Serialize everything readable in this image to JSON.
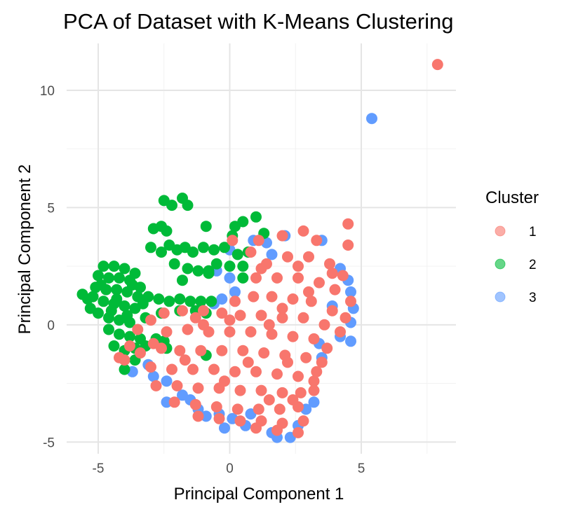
{
  "chart_data": {
    "type": "scatter",
    "title": "PCA of Dataset with K-Means Clustering",
    "xlabel": "Principal Component 1",
    "ylabel": "Principal Component 2",
    "xlim": [
      -6.2,
      8.6
    ],
    "ylim": [
      -5.5,
      12.0
    ],
    "x_ticks": [
      -5,
      0,
      5
    ],
    "y_ticks": [
      -5,
      0,
      5,
      10
    ],
    "x_tick_labels": [
      "-5",
      "0",
      "5"
    ],
    "y_tick_labels": [
      "-5",
      "0",
      "5",
      "10"
    ],
    "grid": true,
    "legend": {
      "title": "Cluster",
      "position": "right",
      "entries": [
        "1",
        "2",
        "3"
      ]
    },
    "series": [
      {
        "name": "1",
        "color": "#F8766D",
        "points": [
          [
            7.9,
            11.1
          ],
          [
            4.5,
            3.4
          ],
          [
            4.5,
            4.3
          ],
          [
            2.8,
            4.0
          ],
          [
            3.3,
            3.6
          ],
          [
            2.0,
            3.8
          ],
          [
            1.1,
            3.6
          ],
          [
            0.1,
            3.6
          ],
          [
            0.8,
            3.1
          ],
          [
            1.4,
            2.6
          ],
          [
            2.2,
            2.9
          ],
          [
            3.0,
            2.9
          ],
          [
            3.8,
            2.6
          ],
          [
            4.3,
            2.1
          ],
          [
            1.0,
            2.0
          ],
          [
            1.8,
            2.0
          ],
          [
            2.6,
            2.0
          ],
          [
            3.4,
            1.8
          ],
          [
            4.0,
            1.5
          ],
          [
            4.6,
            1.0
          ],
          [
            0.9,
            1.2
          ],
          [
            1.6,
            1.2
          ],
          [
            2.4,
            1.1
          ],
          [
            3.1,
            1.0
          ],
          [
            3.9,
            0.6
          ],
          [
            4.4,
            0.3
          ],
          [
            -2.5,
            0.5
          ],
          [
            -1.8,
            0.6
          ],
          [
            -1.0,
            0.6
          ],
          [
            -0.3,
            0.5
          ],
          [
            0.4,
            0.4
          ],
          [
            1.2,
            0.4
          ],
          [
            2.0,
            0.3
          ],
          [
            2.8,
            0.3
          ],
          [
            3.6,
            0.0
          ],
          [
            4.2,
            -0.3
          ],
          [
            -3.5,
            -0.2
          ],
          [
            -3.0,
            0.2
          ],
          [
            -2.4,
            -0.3
          ],
          [
            -1.6,
            -0.2
          ],
          [
            -0.8,
            -0.3
          ],
          [
            0.0,
            -0.3
          ],
          [
            0.8,
            -0.3
          ],
          [
            1.6,
            -0.4
          ],
          [
            2.4,
            -0.5
          ],
          [
            3.2,
            -0.6
          ],
          [
            3.7,
            -1.0
          ],
          [
            -3.4,
            -1.2
          ],
          [
            -2.6,
            -1.0
          ],
          [
            -1.9,
            -1.1
          ],
          [
            -1.1,
            -1.1
          ],
          [
            -0.3,
            -1.1
          ],
          [
            0.5,
            -1.1
          ],
          [
            1.3,
            -1.2
          ],
          [
            2.1,
            -1.3
          ],
          [
            2.9,
            -1.4
          ],
          [
            3.5,
            -1.6
          ],
          [
            -4.0,
            -1.5
          ],
          [
            -3.0,
            -1.8
          ],
          [
            -2.2,
            -1.9
          ],
          [
            -1.4,
            -1.9
          ],
          [
            -0.6,
            -1.9
          ],
          [
            0.2,
            -2.0
          ],
          [
            1.0,
            -2.0
          ],
          [
            1.8,
            -2.1
          ],
          [
            2.6,
            -2.2
          ],
          [
            3.2,
            -2.4
          ],
          [
            -2.8,
            -2.6
          ],
          [
            -2.0,
            -2.6
          ],
          [
            -1.2,
            -2.7
          ],
          [
            -0.4,
            -2.7
          ],
          [
            0.4,
            -2.8
          ],
          [
            1.2,
            -2.8
          ],
          [
            2.0,
            -2.9
          ],
          [
            2.7,
            -2.9
          ],
          [
            3.2,
            -2.8
          ],
          [
            -2.1,
            -3.3
          ],
          [
            -1.3,
            -3.4
          ],
          [
            -0.5,
            -3.5
          ],
          [
            0.3,
            -3.6
          ],
          [
            1.1,
            -3.6
          ],
          [
            1.9,
            -3.6
          ],
          [
            2.6,
            -3.5
          ],
          [
            -1.2,
            -3.9
          ],
          [
            -0.4,
            -4.0
          ],
          [
            0.4,
            -4.1
          ],
          [
            1.2,
            -4.1
          ],
          [
            2.0,
            -4.2
          ],
          [
            2.8,
            -4.1
          ],
          [
            1.0,
            -4.4
          ],
          [
            1.8,
            -4.5
          ],
          [
            2.6,
            -4.6
          ],
          [
            -1.0,
            0.0
          ],
          [
            0.2,
            1.0
          ],
          [
            1.5,
            0.0
          ],
          [
            2.2,
            -1.6
          ],
          [
            0.7,
            -1.6
          ],
          [
            -0.2,
            -2.4
          ],
          [
            -1.7,
            -1.5
          ],
          [
            -2.9,
            -0.8
          ],
          [
            3.0,
            1.4
          ],
          [
            1.2,
            2.4
          ],
          [
            2.6,
            2.5
          ],
          [
            3.9,
            2.2
          ],
          [
            2.0,
            0.7
          ],
          [
            0.0,
            0.2
          ],
          [
            -1.3,
            0.3
          ],
          [
            -3.8,
            -0.9
          ],
          [
            -4.2,
            -1.4
          ],
          [
            2.4,
            -3.2
          ],
          [
            1.5,
            -3.2
          ],
          [
            3.3,
            -2.0
          ]
        ]
      },
      {
        "name": "2",
        "color": "#00BA38",
        "points": [
          [
            -2.5,
            5.3
          ],
          [
            -2.2,
            5.1
          ],
          [
            -1.8,
            5.4
          ],
          [
            -1.6,
            5.1
          ],
          [
            -2.9,
            4.1
          ],
          [
            -2.6,
            4.2
          ],
          [
            -2.4,
            4.0
          ],
          [
            -0.9,
            4.2
          ],
          [
            0.5,
            4.4
          ],
          [
            1.0,
            4.6
          ],
          [
            0.2,
            4.2
          ],
          [
            0.1,
            3.8
          ],
          [
            1.3,
            3.9
          ],
          [
            -3.0,
            3.3
          ],
          [
            -2.6,
            3.1
          ],
          [
            -2.3,
            3.4
          ],
          [
            -2.0,
            3.2
          ],
          [
            -1.7,
            3.3
          ],
          [
            -1.4,
            3.1
          ],
          [
            -1.0,
            3.3
          ],
          [
            -0.6,
            3.2
          ],
          [
            -0.2,
            3.3
          ],
          [
            0.3,
            3.0
          ],
          [
            0.7,
            3.1
          ],
          [
            -2.1,
            2.6
          ],
          [
            -1.6,
            2.4
          ],
          [
            -1.2,
            2.3
          ],
          [
            -0.8,
            2.3
          ],
          [
            -0.5,
            2.6
          ],
          [
            0.0,
            2.5
          ],
          [
            0.5,
            2.5
          ],
          [
            -0.8,
            2.2
          ],
          [
            -1.8,
            1.9
          ],
          [
            0.5,
            2.0
          ],
          [
            -4.8,
            2.5
          ],
          [
            -4.4,
            2.5
          ],
          [
            -4.0,
            2.4
          ],
          [
            -3.6,
            2.2
          ],
          [
            -5.0,
            2.1
          ],
          [
            -4.6,
            2.0
          ],
          [
            -4.2,
            2.0
          ],
          [
            -3.8,
            1.9
          ],
          [
            -3.4,
            1.6
          ],
          [
            -5.1,
            1.6
          ],
          [
            -4.7,
            1.5
          ],
          [
            -4.3,
            1.5
          ],
          [
            -3.9,
            1.4
          ],
          [
            -3.5,
            1.2
          ],
          [
            -3.1,
            1.2
          ],
          [
            -2.7,
            1.1
          ],
          [
            -2.3,
            1.0
          ],
          [
            -1.9,
            1.1
          ],
          [
            -1.5,
            1.0
          ],
          [
            -1.1,
            1.0
          ],
          [
            -0.7,
            1.0
          ],
          [
            -5.6,
            1.3
          ],
          [
            -5.2,
            1.2
          ],
          [
            -4.8,
            1.0
          ],
          [
            -4.4,
            0.9
          ],
          [
            -4.0,
            0.8
          ],
          [
            -3.6,
            0.7
          ],
          [
            -5.0,
            0.5
          ],
          [
            -4.6,
            0.3
          ],
          [
            -4.2,
            0.2
          ],
          [
            -3.8,
            0.1
          ],
          [
            -4.6,
            -0.2
          ],
          [
            -4.2,
            -0.4
          ],
          [
            -3.8,
            -0.5
          ],
          [
            -3.4,
            -0.6
          ],
          [
            -4.4,
            -0.9
          ],
          [
            -4.0,
            -1.1
          ],
          [
            -3.6,
            -1.0
          ],
          [
            -3.2,
            -0.9
          ],
          [
            -2.8,
            -0.6
          ],
          [
            -2.5,
            -0.7
          ],
          [
            -4.0,
            -1.9
          ],
          [
            -3.6,
            -1.5
          ],
          [
            -2.4,
            -1.0
          ],
          [
            -0.9,
            -1.3
          ],
          [
            -5.4,
            1.1
          ],
          [
            -4.9,
            1.7
          ],
          [
            -4.3,
            1.1
          ],
          [
            -3.7,
            1.7
          ],
          [
            -3.3,
            0.9
          ],
          [
            -2.6,
            0.5
          ],
          [
            -1.9,
            0.6
          ],
          [
            -1.3,
            0.6
          ],
          [
            -0.9,
            0.5
          ],
          [
            -4.5,
            0.6
          ],
          [
            -3.9,
            0.4
          ],
          [
            -5.3,
            0.7
          ],
          [
            -3.2,
            0.3
          ]
        ]
      },
      {
        "name": "3",
        "color": "#619CFF",
        "points": [
          [
            5.4,
            8.8
          ],
          [
            2.1,
            3.8
          ],
          [
            3.5,
            3.6
          ],
          [
            0.9,
            3.6
          ],
          [
            4.5,
            1.9
          ],
          [
            4.6,
            1.4
          ],
          [
            4.7,
            0.7
          ],
          [
            4.6,
            0.1
          ],
          [
            4.6,
            -0.7
          ],
          [
            3.4,
            -0.8
          ],
          [
            3.5,
            -1.4
          ],
          [
            1.4,
            3.5
          ],
          [
            0.0,
            3.2
          ],
          [
            -0.5,
            2.3
          ],
          [
            0.0,
            2.0
          ],
          [
            -0.3,
            1.1
          ],
          [
            -0.6,
            0.9
          ],
          [
            0.2,
            1.4
          ],
          [
            -3.1,
            -1.7
          ],
          [
            -2.9,
            -2.2
          ],
          [
            -2.4,
            -2.4
          ],
          [
            -2.4,
            -3.3
          ],
          [
            -1.8,
            -3.0
          ],
          [
            -1.2,
            -3.6
          ],
          [
            -0.9,
            -3.9
          ],
          [
            -0.4,
            -3.8
          ],
          [
            0.1,
            -4.0
          ],
          [
            0.8,
            -3.8
          ],
          [
            1.8,
            -4.8
          ],
          [
            2.3,
            -4.8
          ],
          [
            2.6,
            -4.3
          ],
          [
            1.6,
            -4.6
          ],
          [
            3.2,
            -3.3
          ],
          [
            -3.7,
            -2.0
          ],
          [
            -0.2,
            -4.4
          ],
          [
            0.6,
            -4.3
          ],
          [
            3.9,
            0.8
          ],
          [
            4.2,
            -0.5
          ],
          [
            4.2,
            2.4
          ],
          [
            1.6,
            3.0
          ],
          [
            -1.5,
            -3.2
          ],
          [
            2.9,
            -3.6
          ]
        ]
      }
    ]
  }
}
